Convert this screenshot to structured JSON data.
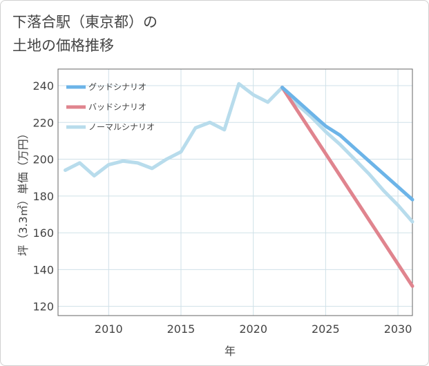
{
  "title_lines": [
    "下落合駅（東京都）の",
    "土地の価格推移"
  ],
  "chart_data": {
    "type": "line",
    "title": "下落合駅（東京都）の土地の価格推移",
    "xlabel": "年",
    "ylabel": "坪（3.3㎡）単価（万円）",
    "xlim": [
      2006.5,
      2031
    ],
    "ylim": [
      115,
      249
    ],
    "xticks": [
      2010,
      2015,
      2020,
      2025,
      2030
    ],
    "yticks": [
      120,
      140,
      160,
      180,
      200,
      220,
      240
    ],
    "legend_position": "top-left",
    "series": [
      {
        "name": "グッドシナリオ",
        "color": "#6cb4e8",
        "x": [
          2022,
          2023,
          2024,
          2025,
          2026,
          2027,
          2028,
          2029,
          2030,
          2031
        ],
        "y": [
          239,
          232,
          225,
          218,
          213,
          206,
          199,
          192,
          185,
          178
        ]
      },
      {
        "name": "バッドシナリオ",
        "color": "#e0848e",
        "x": [
          2022,
          2023,
          2024,
          2025,
          2026,
          2027,
          2028,
          2029,
          2030,
          2031
        ],
        "y": [
          239,
          227,
          215,
          203,
          191,
          179,
          167,
          155,
          143,
          131
        ]
      },
      {
        "name": "ノーマルシナリオ",
        "color": "#b8dcec",
        "x": [
          2007,
          2008,
          2009,
          2010,
          2011,
          2012,
          2013,
          2014,
          2015,
          2016,
          2017,
          2018,
          2019,
          2020,
          2021,
          2022,
          2023,
          2024,
          2025,
          2026,
          2027,
          2028,
          2029,
          2030,
          2031
        ],
        "y": [
          194,
          198,
          191,
          197,
          199,
          198,
          195,
          200,
          204,
          217,
          220,
          216,
          241,
          235,
          231,
          239,
          230,
          223,
          215,
          208,
          200,
          192,
          183,
          175,
          166
        ]
      }
    ]
  }
}
